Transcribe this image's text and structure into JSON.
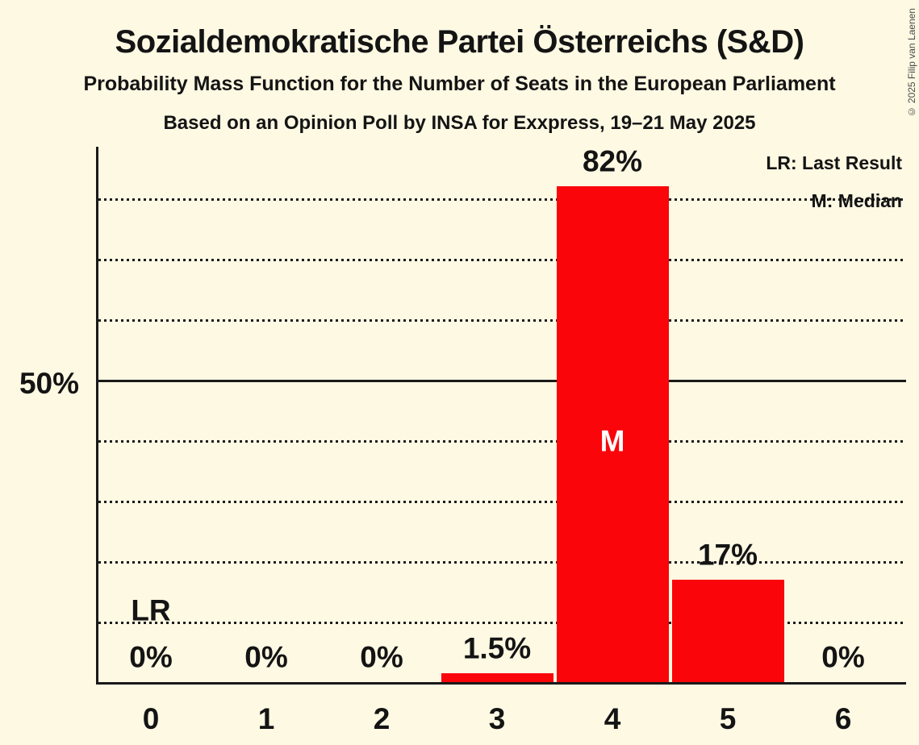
{
  "title": "Sozialdemokratische Partei Österreichs (S&D)",
  "subtitle": "Probability Mass Function for the Number of Seats in the European Parliament",
  "source_line": "Based on an Opinion Poll by INSA for Exxpress, 19–21 May 2025",
  "copyright": "© 2025 Filip van Laenen",
  "legend": {
    "last_result_label": "LR: Last Result",
    "median_label": "M: Median"
  },
  "y_axis": {
    "tick_label": "50%",
    "tick_pct": 50
  },
  "colors": {
    "background": "#FDF9E3",
    "bar": "#FA050A",
    "text": "#141414",
    "grid": "#1c1c1c",
    "axis": "#1a1a1a",
    "median_marker_text": "#ffffff",
    "copyright_text": "#4a4a4a"
  },
  "chart_data": {
    "type": "bar",
    "title": "Sozialdemokratische Partei Österreichs (S&D)",
    "xlabel": "Number of Seats in the European Parliament",
    "ylabel": "Probability",
    "categories": [
      "0",
      "1",
      "2",
      "3",
      "4",
      "5",
      "6"
    ],
    "values": [
      0,
      0,
      0,
      1.5,
      82,
      17,
      0
    ],
    "bar_labels": [
      "0%",
      "0%",
      "0%",
      "1.5%",
      "82%",
      "17%",
      "0%"
    ],
    "ylim": [
      0,
      88.5
    ],
    "gridlines_pct": [
      10,
      20,
      30,
      40,
      50,
      60,
      70,
      80
    ],
    "solid_gridline_pct": 50,
    "grid": "dotted horizontal",
    "legend_position": "top-right",
    "median_index": 4,
    "median_marker": "M",
    "last_result_index": 0,
    "last_result_marker": "LR"
  }
}
